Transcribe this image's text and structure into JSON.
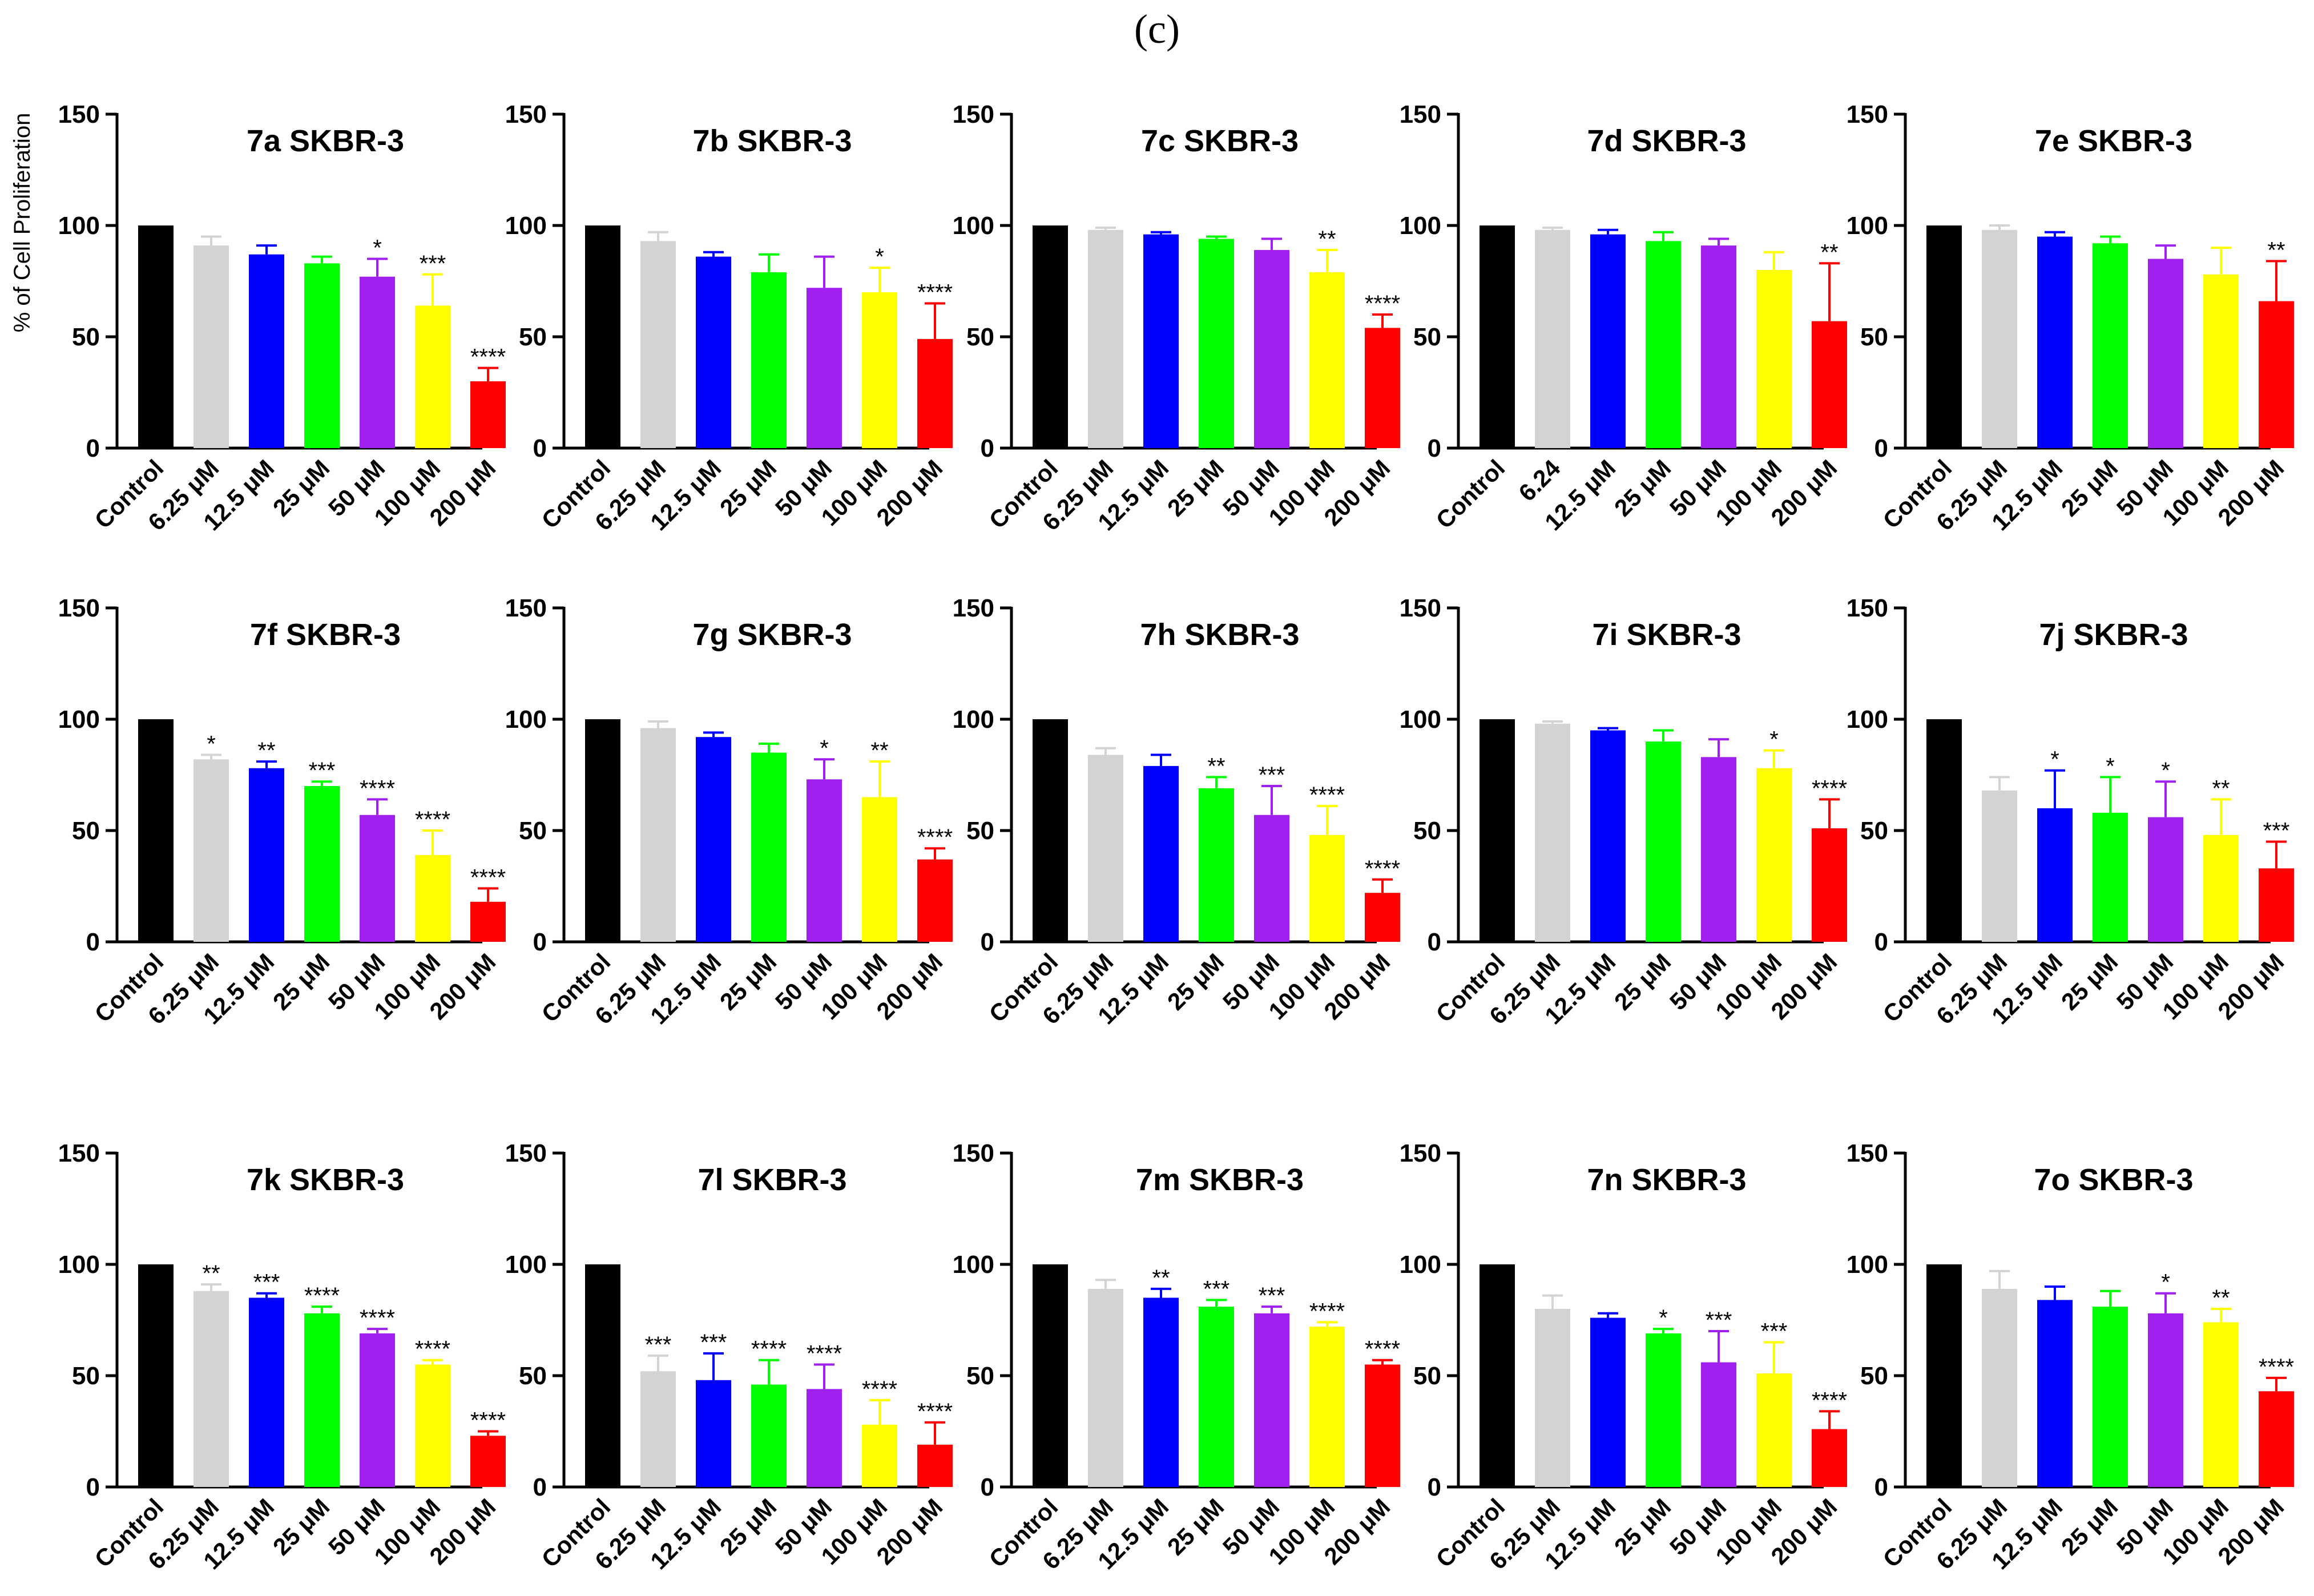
{
  "figure": {
    "label": "(c)"
  },
  "colors": [
    "#000000",
    "#d3d3d3",
    "#0000ff",
    "#00ff00",
    "#a020f0",
    "#ffff00",
    "#ff0000"
  ],
  "chart_data": [
    {
      "type": "bar",
      "title": "7a SKBR-3",
      "ylabel": "% of Cell Proliferation",
      "ylim": [
        0,
        150
      ],
      "yticks": [
        0,
        50,
        100,
        150
      ],
      "categories": [
        "Control",
        "6.25 μM",
        "12.5 μM",
        "25 μM",
        "50 μM",
        "100 μM",
        "200 μM"
      ],
      "values": [
        100,
        91,
        87,
        83,
        77,
        64,
        30
      ],
      "errors": [
        0,
        4,
        4,
        3,
        8,
        14,
        6
      ],
      "significance": [
        "",
        "",
        "",
        "",
        "*",
        "***",
        "****"
      ]
    },
    {
      "type": "bar",
      "title": "7b SKBR-3",
      "ylabel": "",
      "ylim": [
        0,
        150
      ],
      "yticks": [
        0,
        50,
        100,
        150
      ],
      "categories": [
        "Control",
        "6.25 μM",
        "12.5 μM",
        "25 μM",
        "50 μM",
        "100 μM",
        "200 μM"
      ],
      "values": [
        100,
        93,
        86,
        79,
        72,
        70,
        49
      ],
      "errors": [
        0,
        4,
        2,
        8,
        14,
        11,
        16
      ],
      "significance": [
        "",
        "",
        "",
        "",
        "",
        "*",
        "****"
      ]
    },
    {
      "type": "bar",
      "title": "7c SKBR-3",
      "ylabel": "",
      "ylim": [
        0,
        150
      ],
      "yticks": [
        0,
        50,
        100,
        150
      ],
      "categories": [
        "Control",
        "6.25 μM",
        "12.5 μM",
        "25 μM",
        "50 μM",
        "100 μM",
        "200 μM"
      ],
      "values": [
        100,
        98,
        96,
        94,
        89,
        79,
        54
      ],
      "errors": [
        0,
        1,
        1,
        1,
        5,
        10,
        6
      ],
      "significance": [
        "",
        "",
        "",
        "",
        "",
        "**",
        "****"
      ]
    },
    {
      "type": "bar",
      "title": "7d SKBR-3",
      "ylabel": "",
      "ylim": [
        0,
        150
      ],
      "yticks": [
        0,
        50,
        100,
        150
      ],
      "categories": [
        "Control",
        "6.24",
        "12.5 μM",
        "25 μM",
        "50 μM",
        "100 μM",
        "200 μM"
      ],
      "values": [
        100,
        98,
        96,
        93,
        91,
        80,
        57
      ],
      "errors": [
        0,
        1,
        2,
        4,
        3,
        8,
        26
      ],
      "significance": [
        "",
        "",
        "",
        "",
        "",
        "",
        "**"
      ]
    },
    {
      "type": "bar",
      "title": "7e SKBR-3",
      "ylabel": "",
      "ylim": [
        0,
        150
      ],
      "yticks": [
        0,
        50,
        100,
        150
      ],
      "categories": [
        "Control",
        "6.25 μM",
        "12.5 μM",
        "25 μM",
        "50 μM",
        "100 μM",
        "200 μM"
      ],
      "values": [
        100,
        98,
        95,
        92,
        85,
        78,
        66
      ],
      "errors": [
        0,
        2,
        2,
        3,
        6,
        12,
        18
      ],
      "significance": [
        "",
        "",
        "",
        "",
        "",
        "",
        "**"
      ]
    },
    {
      "type": "bar",
      "title": "7f SKBR-3",
      "ylabel": "",
      "ylim": [
        0,
        150
      ],
      "yticks": [
        0,
        50,
        100,
        150
      ],
      "categories": [
        "Control",
        "6.25 μM",
        "12.5 μM",
        "25 μM",
        "50 μM",
        "100 μM",
        "200 μM"
      ],
      "values": [
        100,
        82,
        78,
        70,
        57,
        39,
        18
      ],
      "errors": [
        0,
        2,
        3,
        2,
        7,
        11,
        6
      ],
      "significance": [
        "",
        "*",
        "**",
        "***",
        "****",
        "****",
        "****"
      ]
    },
    {
      "type": "bar",
      "title": "7g SKBR-3",
      "ylabel": "",
      "ylim": [
        0,
        150
      ],
      "yticks": [
        0,
        50,
        100,
        150
      ],
      "categories": [
        "Control",
        "6.25 μM",
        "12.5 μM",
        "25 μM",
        "50 μM",
        "100 μM",
        "200 μM"
      ],
      "values": [
        100,
        96,
        92,
        85,
        73,
        65,
        37
      ],
      "errors": [
        0,
        3,
        2,
        4,
        9,
        16,
        5
      ],
      "significance": [
        "",
        "",
        "",
        "",
        "*",
        "**",
        "****"
      ]
    },
    {
      "type": "bar",
      "title": "7h SKBR-3",
      "ylabel": "",
      "ylim": [
        0,
        150
      ],
      "yticks": [
        0,
        50,
        100,
        150
      ],
      "categories": [
        "Control",
        "6.25 μM",
        "12.5 μM",
        "25 μM",
        "50 μM",
        "100 μM",
        "200 μM"
      ],
      "values": [
        100,
        84,
        79,
        69,
        57,
        48,
        22
      ],
      "errors": [
        0,
        3,
        5,
        5,
        13,
        13,
        6
      ],
      "significance": [
        "",
        "",
        "",
        "**",
        "***",
        "****",
        "****"
      ]
    },
    {
      "type": "bar",
      "title": "7i SKBR-3",
      "ylabel": "",
      "ylim": [
        0,
        150
      ],
      "yticks": [
        0,
        50,
        100,
        150
      ],
      "categories": [
        "Control",
        "6.25 μM",
        "12.5 μM",
        "25 μM",
        "50 μM",
        "100 μM",
        "200 μM"
      ],
      "values": [
        100,
        98,
        95,
        90,
        83,
        78,
        51
      ],
      "errors": [
        0,
        1,
        1,
        5,
        8,
        8,
        13
      ],
      "significance": [
        "",
        "",
        "",
        "",
        "",
        "*",
        "****"
      ]
    },
    {
      "type": "bar",
      "title": "7j SKBR-3",
      "ylabel": "",
      "ylim": [
        0,
        150
      ],
      "yticks": [
        0,
        50,
        100,
        150
      ],
      "categories": [
        "Control",
        "6.25 μM",
        "12.5 μM",
        "25 μM",
        "50 μM",
        "100 μM",
        "200 μM"
      ],
      "values": [
        100,
        68,
        60,
        58,
        56,
        48,
        33
      ],
      "errors": [
        0,
        6,
        17,
        16,
        16,
        16,
        12
      ],
      "significance": [
        "",
        "",
        "*",
        "*",
        "*",
        "**",
        "***"
      ]
    },
    {
      "type": "bar",
      "title": "7k SKBR-3",
      "ylabel": "",
      "ylim": [
        0,
        150
      ],
      "yticks": [
        0,
        50,
        100,
        150
      ],
      "categories": [
        "Control",
        "6.25 μM",
        "12.5 μM",
        "25 μM",
        "50 μM",
        "100 μM",
        "200 μM"
      ],
      "values": [
        100,
        88,
        85,
        78,
        69,
        55,
        23
      ],
      "errors": [
        0,
        3,
        2,
        3,
        2,
        2,
        2
      ],
      "significance": [
        "",
        "**",
        "***",
        "****",
        "****",
        "****",
        "****"
      ]
    },
    {
      "type": "bar",
      "title": "7l SKBR-3",
      "ylabel": "",
      "ylim": [
        0,
        150
      ],
      "yticks": [
        0,
        50,
        100,
        150
      ],
      "categories": [
        "Control",
        "6.25 μM",
        "12.5 μM",
        "25 μM",
        "50 μM",
        "100 μM",
        "200 μM"
      ],
      "values": [
        100,
        52,
        48,
        46,
        44,
        28,
        19
      ],
      "errors": [
        0,
        7,
        12,
        11,
        11,
        11,
        10
      ],
      "significance": [
        "",
        "***",
        "***",
        "****",
        "****",
        "****",
        "****"
      ]
    },
    {
      "type": "bar",
      "title": "7m SKBR-3",
      "ylabel": "",
      "ylim": [
        0,
        150
      ],
      "yticks": [
        0,
        50,
        100,
        150
      ],
      "categories": [
        "Control",
        "6.25 μM",
        "12.5 μM",
        "25 μM",
        "50 μM",
        "100 μM",
        "200 μM"
      ],
      "values": [
        100,
        89,
        85,
        81,
        78,
        72,
        55
      ],
      "errors": [
        0,
        4,
        4,
        3,
        3,
        2,
        2
      ],
      "significance": [
        "",
        "",
        "**",
        "***",
        "***",
        "****",
        "****"
      ]
    },
    {
      "type": "bar",
      "title": "7n SKBR-3",
      "ylabel": "",
      "ylim": [
        0,
        150
      ],
      "yticks": [
        0,
        50,
        100,
        150
      ],
      "categories": [
        "Control",
        "6.25 μM",
        "12.5 μM",
        "25 μM",
        "50 μM",
        "100 μM",
        "200 μM"
      ],
      "values": [
        100,
        80,
        76,
        69,
        56,
        51,
        26
      ],
      "errors": [
        0,
        6,
        2,
        2,
        14,
        14,
        8
      ],
      "significance": [
        "",
        "",
        "",
        "*",
        "***",
        "***",
        "****"
      ]
    },
    {
      "type": "bar",
      "title": "7o SKBR-3",
      "ylabel": "",
      "ylim": [
        0,
        150
      ],
      "yticks": [
        0,
        50,
        100,
        150
      ],
      "categories": [
        "Control",
        "6.25 μM",
        "12.5 μM",
        "25 μM",
        "50 μM",
        "100 μM",
        "200 μM"
      ],
      "values": [
        100,
        89,
        84,
        81,
        78,
        74,
        43
      ],
      "errors": [
        0,
        8,
        6,
        7,
        9,
        6,
        6
      ],
      "significance": [
        "",
        "",
        "",
        "",
        "*",
        "**",
        "****"
      ]
    }
  ]
}
